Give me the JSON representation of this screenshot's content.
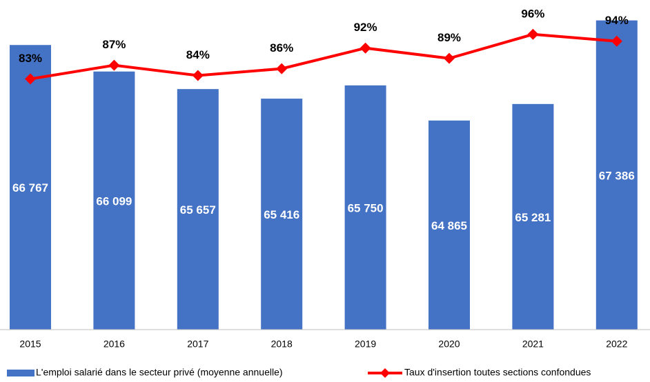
{
  "chart_data": {
    "type": "bar_line",
    "categories": [
      "2015",
      "2016",
      "2017",
      "2018",
      "2019",
      "2020",
      "2021",
      "2022"
    ],
    "series": [
      {
        "name": "L'emploi salarié dans le secteur privé (moyenne annuelle)",
        "type": "bar",
        "color": "#4472c4",
        "values": [
          66767,
          66099,
          65657,
          65416,
          65750,
          64865,
          65281,
          67386
        ],
        "value_labels": [
          "66 767",
          "66 099",
          "65 657",
          "65 416",
          "65 750",
          "64 865",
          "65 281",
          "67 386"
        ]
      },
      {
        "name": "Taux d'insertion toutes sections confondues",
        "type": "line",
        "axis": "y2",
        "color": "#ff0000",
        "values": [
          83,
          87,
          84,
          86,
          92,
          89,
          96,
          94
        ],
        "value_labels": [
          "83%",
          "87%",
          "84%",
          "86%",
          "92%",
          "89%",
          "96%",
          "94%"
        ]
      }
    ],
    "ylim": [
      59600,
      67900
    ],
    "y2lim": [
      10,
      106
    ],
    "legend": "bottom"
  }
}
